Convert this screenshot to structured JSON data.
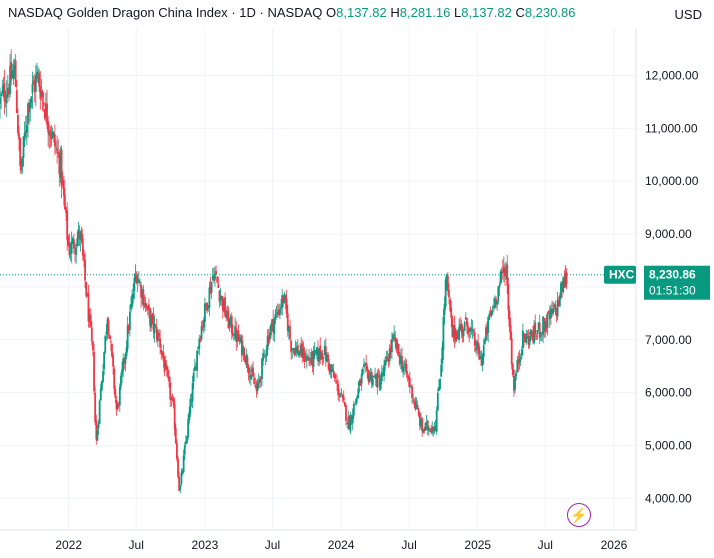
{
  "header": {
    "symbol_name": "NASDAQ Golden Dragon China Index",
    "interval": "1D",
    "exchange": "NASDAQ",
    "ohlc": {
      "open": "8,137.82",
      "high": "8,281.16",
      "low": "8,137.82",
      "close": "8,230.86"
    }
  },
  "currency": "USD",
  "price_tag": {
    "ticker": "HXC",
    "price": "8,230.86",
    "countdown": "01:51:30"
  },
  "colors": {
    "up": "#089981",
    "down": "#f23645",
    "tag": "#089981",
    "accent_icon": "#9c27b0"
  },
  "icons": [
    "lightning-icon"
  ],
  "chart_data": {
    "type": "candlestick",
    "y_ticks": [
      "4,000.00",
      "5,000.00",
      "6,000.00",
      "7,000.00",
      "8,000.00",
      "9,000.00",
      "10,000.00",
      "11,000.00",
      "12,000.00"
    ],
    "x_ticks": [
      "2022",
      "Jul",
      "2023",
      "Jul",
      "2024",
      "Jul",
      "2025",
      "Jul",
      "2026"
    ],
    "x_tick_dates": [
      "2022-01-01",
      "2022-07-01",
      "2023-01-01",
      "2023-07-01",
      "2024-01-01",
      "2024-07-01",
      "2025-01-01",
      "2025-07-01",
      "2026-01-01"
    ],
    "ylim": [
      3400,
      12900
    ],
    "xlim": [
      "2021-07-01",
      "2026-03-01"
    ],
    "last_price": 8230.86,
    "trend_points": [
      [
        "2021-07-01",
        11500
      ],
      [
        "2021-08-10",
        12100
      ],
      [
        "2021-08-25",
        10100
      ],
      [
        "2021-09-15",
        11500
      ],
      [
        "2021-10-10",
        12000
      ],
      [
        "2021-11-05",
        11200
      ],
      [
        "2021-12-10",
        10300
      ],
      [
        "2022-01-01",
        8700
      ],
      [
        "2022-02-01",
        9000
      ],
      [
        "2022-03-08",
        6600
      ],
      [
        "2022-03-15",
        5000
      ],
      [
        "2022-04-15",
        7500
      ],
      [
        "2022-05-10",
        5600
      ],
      [
        "2022-06-15",
        7500
      ],
      [
        "2022-07-01",
        8300
      ],
      [
        "2022-08-01",
        7500
      ],
      [
        "2022-09-01",
        7000
      ],
      [
        "2022-10-10",
        5600
      ],
      [
        "2022-10-25",
        4100
      ],
      [
        "2022-11-15",
        5300
      ],
      [
        "2022-12-15",
        7000
      ],
      [
        "2023-01-25",
        8300
      ],
      [
        "2023-03-01",
        7400
      ],
      [
        "2023-04-15",
        6800
      ],
      [
        "2023-05-20",
        6000
      ],
      [
        "2023-06-20",
        7100
      ],
      [
        "2023-07-31",
        7800
      ],
      [
        "2023-08-20",
        6900
      ],
      [
        "2023-10-10",
        6600
      ],
      [
        "2023-11-15",
        6800
      ],
      [
        "2024-01-01",
        5900
      ],
      [
        "2024-01-22",
        5400
      ],
      [
        "2024-03-01",
        6400
      ],
      [
        "2024-04-15",
        6200
      ],
      [
        "2024-05-20",
        7000
      ],
      [
        "2024-07-01",
        6200
      ],
      [
        "2024-08-05",
        5300
      ],
      [
        "2024-09-10",
        5400
      ],
      [
        "2024-09-25",
        6600
      ],
      [
        "2024-10-08",
        8200
      ],
      [
        "2024-10-25",
        7100
      ],
      [
        "2024-12-05",
        7300
      ],
      [
        "2025-01-10",
        6600
      ],
      [
        "2025-02-01",
        7400
      ],
      [
        "2025-03-17",
        8450
      ],
      [
        "2025-04-07",
        6100
      ],
      [
        "2025-04-30",
        7000
      ],
      [
        "2025-06-01",
        7100
      ],
      [
        "2025-07-01",
        7300
      ],
      [
        "2025-08-01",
        7600
      ],
      [
        "2025-08-15",
        8000
      ],
      [
        "2025-08-29",
        8230
      ]
    ]
  }
}
